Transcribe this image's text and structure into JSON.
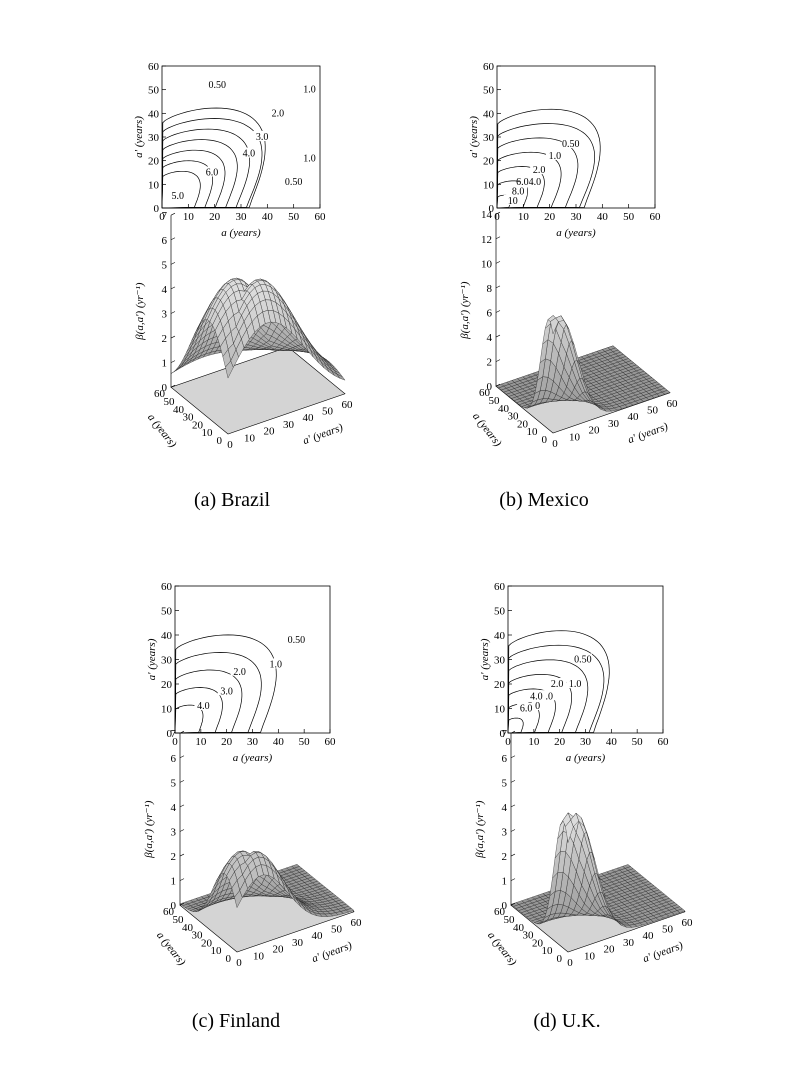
{
  "figure": {
    "axis_label_a": "a (years)",
    "axis_label_ap": "a' (years)",
    "z_label": "β(a,a') (yr⁻¹)"
  },
  "chart_data": [
    {
      "type": "contour",
      "panel": "a",
      "caption": "(a) Brazil",
      "xlabel": "a (years)",
      "ylabel": "a' (years)",
      "xlim": [
        0,
        60
      ],
      "ylim": [
        0,
        60
      ],
      "xticks": [
        0,
        10,
        20,
        30,
        40,
        50,
        60
      ],
      "yticks": [
        0,
        10,
        20,
        30,
        40,
        50,
        60
      ],
      "levels": [
        "0.50",
        "1.0",
        "2.0",
        "3.0",
        "4.0",
        "5.0",
        "6.0"
      ],
      "peak": {
        "a": 18,
        "ap": 18,
        "value": 6.4
      },
      "contour_labels": [
        {
          "text": "0.50",
          "a": 21,
          "ap": 52
        },
        {
          "text": "1.0",
          "a": 56,
          "ap": 50
        },
        {
          "text": "2.0",
          "a": 44,
          "ap": 40
        },
        {
          "text": "3.0",
          "a": 38,
          "ap": 30
        },
        {
          "text": "4.0",
          "a": 33,
          "ap": 23
        },
        {
          "text": "6.0",
          "a": 19,
          "ap": 15
        },
        {
          "text": "5.0",
          "a": 6,
          "ap": 5
        },
        {
          "text": "1.0",
          "a": 56,
          "ap": 21
        },
        {
          "text": "0.50",
          "a": 50,
          "ap": 11
        }
      ],
      "surface": {
        "zlabel": "β(a,a') (yr⁻¹)",
        "xlabel": "a (years)",
        "ylabel": "a' (years)",
        "zlim": [
          0,
          7
        ],
        "zticks": [
          0,
          1,
          2,
          3,
          4,
          5,
          6,
          7
        ],
        "xticks": [
          0,
          10,
          20,
          30,
          40,
          50,
          60
        ],
        "yticks": [
          0,
          10,
          20,
          30,
          40,
          50,
          60
        ]
      }
    },
    {
      "type": "contour",
      "panel": "b",
      "caption": "(b) Mexico",
      "xlabel": "a (years)",
      "ylabel": "a' (years)",
      "xlim": [
        0,
        60
      ],
      "ylim": [
        0,
        60
      ],
      "xticks": [
        0,
        10,
        20,
        30,
        40,
        50,
        60
      ],
      "yticks": [
        0,
        10,
        20,
        30,
        40,
        50,
        60
      ],
      "levels": [
        "0.50",
        "1.0",
        "2.0",
        "4.0",
        "6.0",
        "8.0",
        "10"
      ],
      "peak": {
        "a": 3,
        "ap": 3,
        "value": 12
      },
      "contour_labels": [
        {
          "text": "0.50",
          "a": 28,
          "ap": 27
        },
        {
          "text": "1.0",
          "a": 22,
          "ap": 22
        },
        {
          "text": "2.0",
          "a": 16,
          "ap": 16
        },
        {
          "text": "6.04.0",
          "a": 12,
          "ap": 11
        },
        {
          "text": "8.0",
          "a": 8,
          "ap": 7
        },
        {
          "text": "10",
          "a": 6,
          "ap": 3
        }
      ],
      "surface": {
        "zlabel": "β(a,a') (yr⁻¹)",
        "xlabel": "a (years)",
        "ylabel": "a' (years)",
        "zlim": [
          0,
          14
        ],
        "zticks": [
          0,
          2,
          4,
          6,
          8,
          10,
          12,
          14
        ],
        "xticks": [
          0,
          10,
          20,
          30,
          40,
          50,
          60
        ],
        "yticks": [
          0,
          10,
          20,
          30,
          40,
          50,
          60
        ]
      }
    },
    {
      "type": "contour",
      "panel": "c",
      "caption": "(c) Finland",
      "xlabel": "a (years)",
      "ylabel": "a' (years)",
      "xlim": [
        0,
        60
      ],
      "ylim": [
        0,
        60
      ],
      "xticks": [
        0,
        10,
        20,
        30,
        40,
        50,
        60
      ],
      "yticks": [
        0,
        10,
        20,
        30,
        40,
        50,
        60
      ],
      "levels": [
        "0.50",
        "1.0",
        "2.0",
        "3.0",
        "4.0"
      ],
      "peak": {
        "a": 11,
        "ap": 11,
        "value": 4.3
      },
      "contour_labels": [
        {
          "text": "0.50",
          "a": 47,
          "ap": 38
        },
        {
          "text": "1.0",
          "a": 39,
          "ap": 28
        },
        {
          "text": "2.0",
          "a": 25,
          "ap": 25
        },
        {
          "text": "3.0",
          "a": 20,
          "ap": 17
        },
        {
          "text": "4.0",
          "a": 11,
          "ap": 11
        }
      ],
      "surface": {
        "zlabel": "β(a,a') (yr⁻¹)",
        "xlabel": "a (years)",
        "ylabel": "a' (years)",
        "zlim": [
          0,
          7
        ],
        "zticks": [
          0,
          1,
          2,
          3,
          4,
          5,
          6,
          7
        ],
        "xticks": [
          0,
          10,
          20,
          30,
          40,
          50,
          60
        ],
        "yticks": [
          0,
          10,
          20,
          30,
          40,
          50,
          60
        ]
      }
    },
    {
      "type": "contour",
      "panel": "d",
      "caption": "(d) U.K.",
      "xlabel": "a (years)",
      "ylabel": "a' (years)",
      "xlim": [
        0,
        60
      ],
      "ylim": [
        0,
        60
      ],
      "xticks": [
        0,
        10,
        20,
        30,
        40,
        50,
        60
      ],
      "yticks": [
        0,
        10,
        20,
        30,
        40,
        50,
        60
      ],
      "levels": [
        "0.50",
        "1.0",
        "2.0",
        "3.0",
        "4.0",
        "5.0",
        "6.0"
      ],
      "peak": {
        "a": 4,
        "ap": 4,
        "value": 7
      },
      "contour_labels": [
        {
          "text": "0.50",
          "a": 29,
          "ap": 30
        },
        {
          "text": "1.0",
          "a": 26,
          "ap": 20
        },
        {
          "text": "2.0",
          "a": 19,
          "ap": 20
        },
        {
          "text": "3.0",
          "a": 15,
          "ap": 15
        },
        {
          "text": "4.0",
          "a": 11,
          "ap": 15
        },
        {
          "text": "5.0",
          "a": 10,
          "ap": 11
        },
        {
          "text": "6.0",
          "a": 7,
          "ap": 10
        }
      ],
      "surface": {
        "zlabel": "β(a,a') (yr⁻¹)",
        "xlabel": "a (years)",
        "ylabel": "a' (years)",
        "zlim": [
          0,
          7
        ],
        "zticks": [
          0,
          1,
          2,
          3,
          4,
          5,
          6,
          7
        ],
        "xticks": [
          0,
          10,
          20,
          30,
          40,
          50,
          60
        ],
        "yticks": [
          0,
          10,
          20,
          30,
          40,
          50,
          60
        ]
      }
    }
  ]
}
